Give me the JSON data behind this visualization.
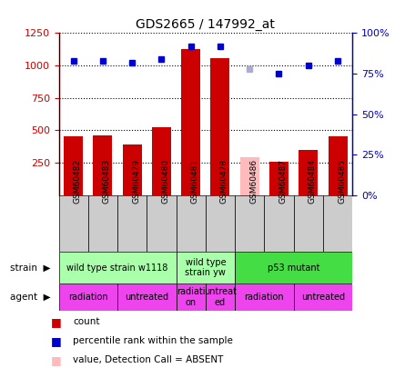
{
  "title": "GDS2665 / 147992_at",
  "samples": [
    "GSM60482",
    "GSM60483",
    "GSM60479",
    "GSM60480",
    "GSM60481",
    "GSM60478",
    "GSM60486",
    "GSM60487",
    "GSM60484",
    "GSM60485"
  ],
  "counts": [
    450,
    460,
    390,
    525,
    1130,
    1060,
    290,
    255,
    350,
    455
  ],
  "ranks": [
    83,
    83,
    82,
    84,
    92,
    92,
    78,
    75,
    80,
    83
  ],
  "bar_colors": [
    "#cc0000",
    "#cc0000",
    "#cc0000",
    "#cc0000",
    "#cc0000",
    "#cc0000",
    "#ffbbbb",
    "#cc0000",
    "#cc0000",
    "#cc0000"
  ],
  "dot_colors": [
    "#0000cc",
    "#0000cc",
    "#0000cc",
    "#0000cc",
    "#0000cc",
    "#0000cc",
    "#aaaadd",
    "#0000cc",
    "#0000cc",
    "#0000cc"
  ],
  "ylim_left": [
    0,
    1250
  ],
  "ylim_right": [
    0,
    100
  ],
  "yticks_left": [
    250,
    500,
    750,
    1000,
    1250
  ],
  "yticks_right": [
    0,
    25,
    50,
    75,
    100
  ],
  "ytick_right_labels": [
    "0%",
    "25%",
    "50%",
    "75%",
    "100%"
  ],
  "strain_groups": [
    {
      "label": "wild type strain w1118",
      "start": 0,
      "end": 4,
      "color": "#aaffaa"
    },
    {
      "label": "wild type\nstrain yw",
      "start": 4,
      "end": 6,
      "color": "#aaffaa"
    },
    {
      "label": "p53 mutant",
      "start": 6,
      "end": 10,
      "color": "#44dd44"
    }
  ],
  "agent_groups": [
    {
      "label": "radiation",
      "start": 0,
      "end": 2,
      "color": "#ee44ee"
    },
    {
      "label": "untreated",
      "start": 2,
      "end": 4,
      "color": "#ee44ee"
    },
    {
      "label": "radiati\non",
      "start": 4,
      "end": 5,
      "color": "#ee44ee"
    },
    {
      "label": "untreat\ned",
      "start": 5,
      "end": 6,
      "color": "#ee44ee"
    },
    {
      "label": "radiation",
      "start": 6,
      "end": 8,
      "color": "#ee44ee"
    },
    {
      "label": "untreated",
      "start": 8,
      "end": 10,
      "color": "#ee44ee"
    }
  ],
  "legend_items": [
    {
      "label": "count",
      "color": "#cc0000"
    },
    {
      "label": "percentile rank within the sample",
      "color": "#0000cc"
    },
    {
      "label": "value, Detection Call = ABSENT",
      "color": "#ffbbbb"
    },
    {
      "label": "rank, Detection Call = ABSENT",
      "color": "#aaaadd"
    }
  ],
  "background_color": "#ffffff",
  "left_axis_color": "#cc0000",
  "right_axis_color": "#0000bb",
  "xticklabel_bg": "#cccccc"
}
